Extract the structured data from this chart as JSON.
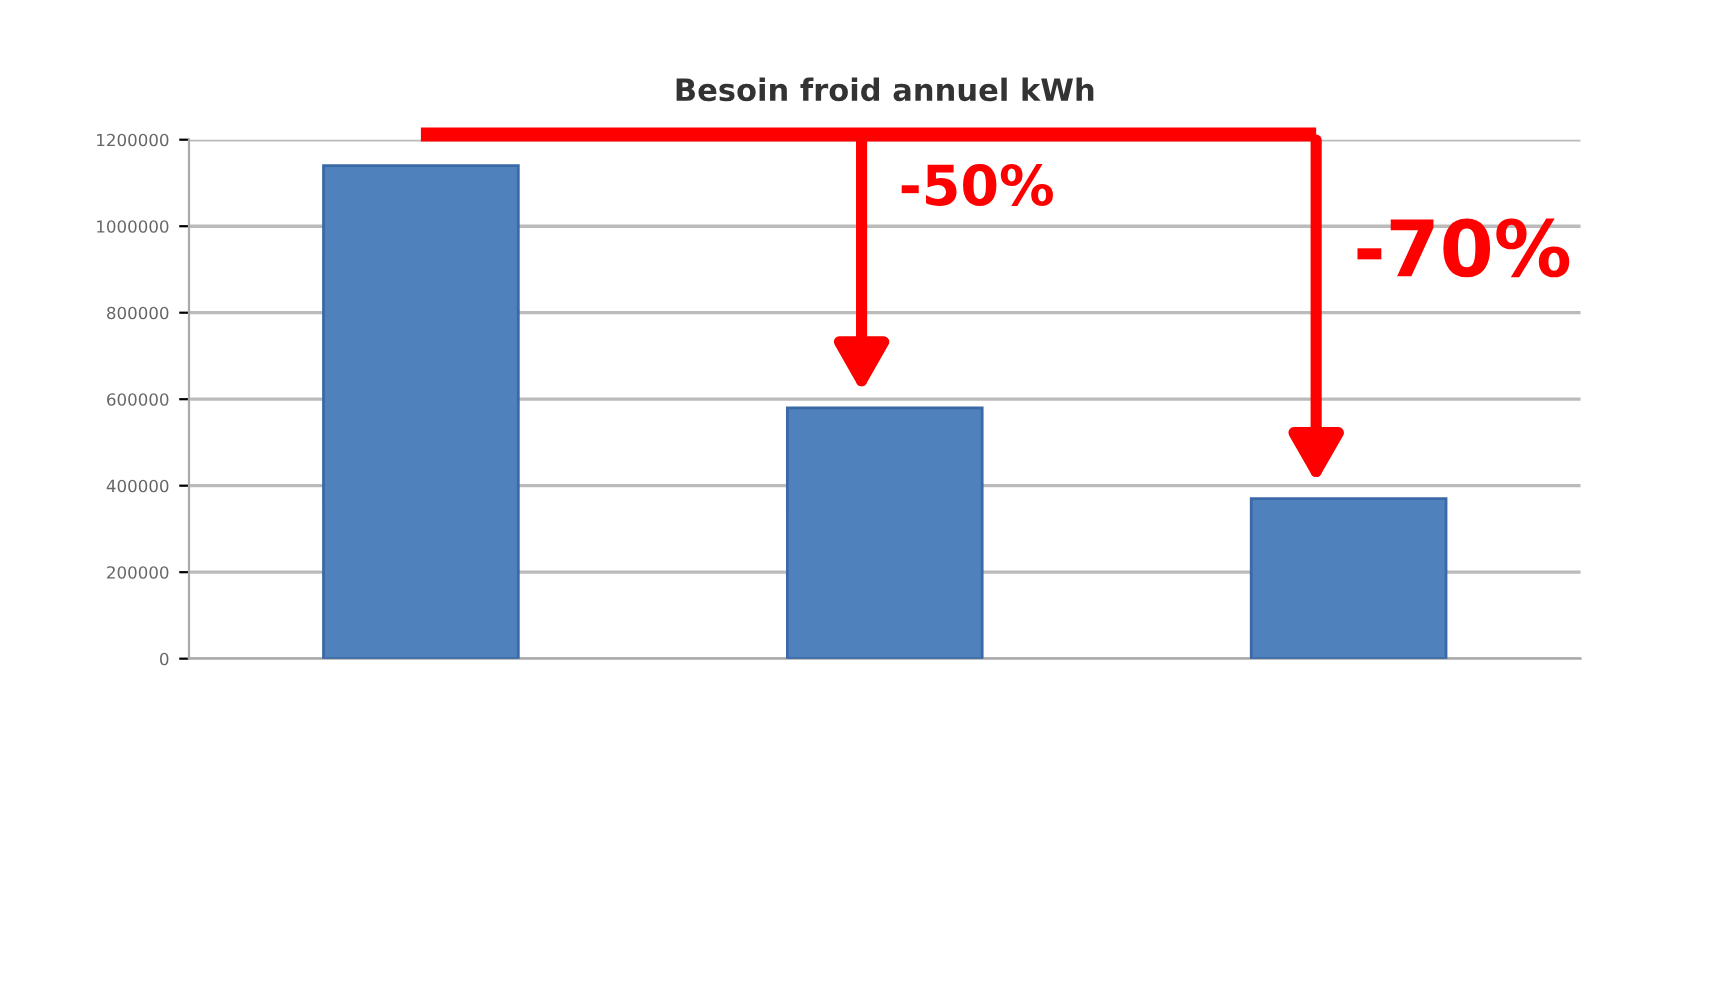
{
  "chart_data": {
    "type": "bar",
    "title": "Besoin froid annuel kWh",
    "categories": [
      null,
      null,
      null
    ],
    "values": [
      1140000,
      580000,
      370000
    ],
    "color": "#4f81bd",
    "ylim": [
      0,
      1200000
    ],
    "yticks": [
      0,
      200000,
      400000,
      600000,
      800000,
      1000000,
      1200000
    ],
    "grid": "y",
    "annotations": [
      "-50%",
      "-70%"
    ]
  }
}
